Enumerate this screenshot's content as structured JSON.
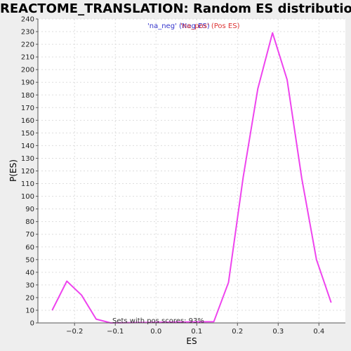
{
  "chart_data": {
    "type": "line",
    "title": "REACTOME_TRANSLATION: Random ES distribution",
    "xlabel": "ES",
    "ylabel": "P(ES)",
    "xlim": [
      -0.29,
      0.465
    ],
    "ylim": [
      0,
      240
    ],
    "xticks": [
      -0.2,
      -0.1,
      0.0,
      0.1,
      0.2,
      0.3,
      0.4
    ],
    "xtick_labels": [
      "−0.2",
      "−0.1",
      "0.0",
      "0.1",
      "0.2",
      "0.3",
      "0.4"
    ],
    "yticks": [
      0,
      10,
      20,
      30,
      40,
      50,
      60,
      70,
      80,
      90,
      100,
      110,
      120,
      130,
      140,
      150,
      160,
      170,
      180,
      190,
      200,
      210,
      220,
      230,
      240
    ],
    "grid": true,
    "legend": [
      {
        "label": "'na_neg' (Neg ES)",
        "color": "#3333cc"
      },
      {
        "label": "'na_pos' (Pos ES)",
        "color": "#dd3333"
      }
    ],
    "series": [
      {
        "color": "#ee44ee",
        "x": [
          -0.255,
          -0.219,
          -0.183,
          -0.147,
          -0.111,
          0.142,
          0.178,
          0.214,
          0.25,
          0.286,
          0.322,
          0.358,
          0.394,
          0.43
        ],
        "y": [
          10,
          33,
          22,
          3,
          0,
          1,
          32,
          115,
          185,
          229,
          192,
          114,
          50,
          16
        ]
      }
    ],
    "annotation": "Sets with pos scores: 93%"
  }
}
